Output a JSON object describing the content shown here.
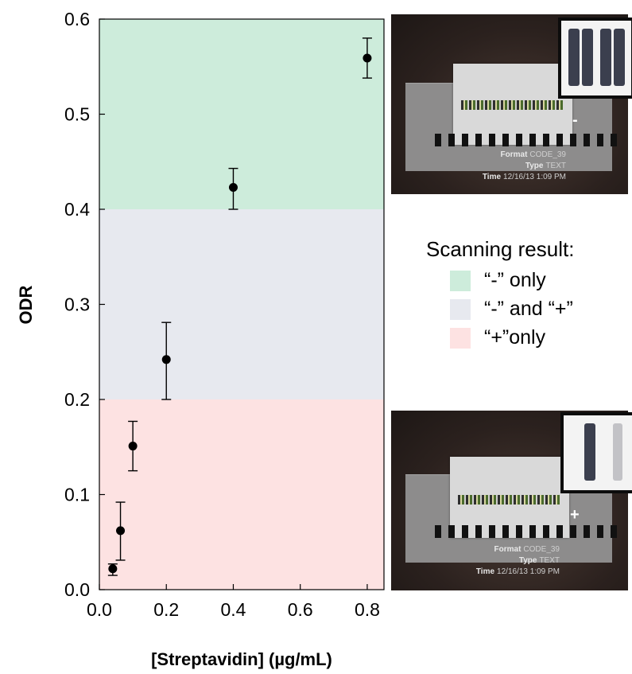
{
  "chart_data": {
    "type": "scatter",
    "title": "",
    "xlabel": "[Streptavidin] (µg/mL)",
    "ylabel": "ODR",
    "xlim": [
      0.0,
      0.85
    ],
    "ylim": [
      0.0,
      0.6
    ],
    "x_ticks": [
      "0.0",
      "0.2",
      "0.4",
      "0.6",
      "0.8"
    ],
    "x_tick_values": [
      0.0,
      0.2,
      0.4,
      0.6,
      0.8
    ],
    "y_ticks": [
      "0.0",
      "0.1",
      "0.2",
      "0.3",
      "0.4",
      "0.5",
      "0.6"
    ],
    "y_tick_values": [
      0.0,
      0.1,
      0.2,
      0.3,
      0.4,
      0.5,
      0.6
    ],
    "grid": false,
    "points": [
      {
        "x": 0.04,
        "y": 0.022,
        "err_low": 0.015,
        "err_high": 0.027
      },
      {
        "x": 0.063,
        "y": 0.062,
        "err_low": 0.031,
        "err_high": 0.092
      },
      {
        "x": 0.1,
        "y": 0.151,
        "err_low": 0.125,
        "err_high": 0.177
      },
      {
        "x": 0.2,
        "y": 0.242,
        "err_low": 0.2,
        "err_high": 0.281
      },
      {
        "x": 0.4,
        "y": 0.423,
        "err_low": 0.4,
        "err_high": 0.443
      },
      {
        "x": 0.8,
        "y": 0.559,
        "err_low": 0.538,
        "err_high": 0.58
      }
    ],
    "regions": [
      {
        "label": "“-” only",
        "y_from": 0.4,
        "y_to": 0.6,
        "color": "#cdecdb"
      },
      {
        "label": "“-” and “+”",
        "y_from": 0.2,
        "y_to": 0.4,
        "color": "#e7e9ef"
      },
      {
        "label": "“+”only",
        "y_from": 0.0,
        "y_to": 0.2,
        "color": "#fde2e2"
      }
    ],
    "legend_position": "right-middle",
    "marker_color": "#000000"
  },
  "legend": {
    "title": "Scanning result:",
    "items": [
      {
        "label": "“-” only",
        "color": "#cdecdb"
      },
      {
        "label": "“-” and “+”",
        "color": "#e7e9ef"
      },
      {
        "label": "“+”only",
        "color": "#fde2e2"
      }
    ]
  },
  "photos": [
    {
      "mark": "-",
      "format_label": "Format",
      "format_value": "CODE_39",
      "type_label": "Type",
      "type_value": "TEXT",
      "time_label": "Time",
      "time_value": "12/16/13 1:09 PM"
    },
    {
      "mark": "+",
      "format_label": "Format",
      "format_value": "CODE_39",
      "type_label": "Type",
      "type_value": "TEXT",
      "time_label": "Time",
      "time_value": "12/16/13 1:09 PM"
    }
  ]
}
